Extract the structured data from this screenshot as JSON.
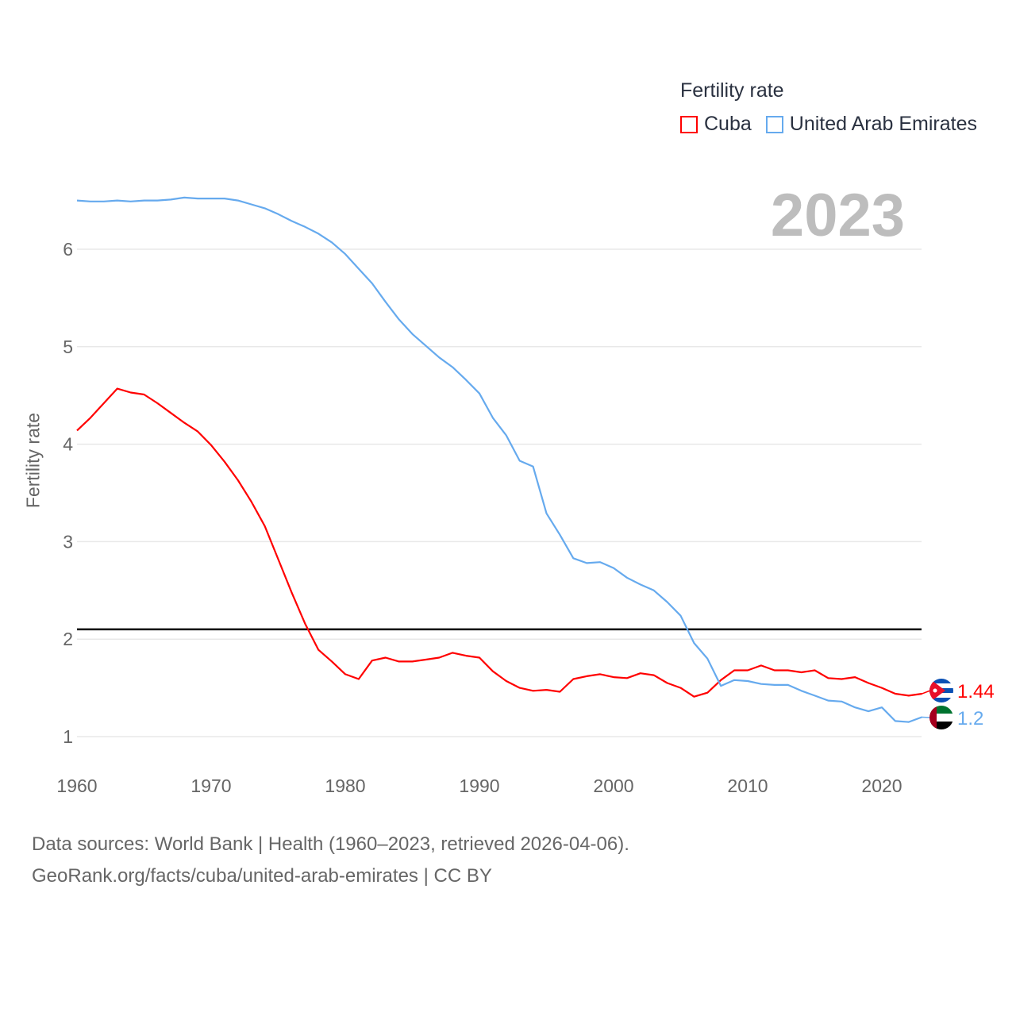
{
  "chart_data": {
    "type": "line",
    "title": "",
    "current_year": "2023",
    "xlabel": "",
    "ylabel": "Fertility rate",
    "xlim": [
      1960,
      2023
    ],
    "ylim": [
      0.8,
      6.6
    ],
    "xticks": [
      1960,
      1970,
      1980,
      1990,
      2000,
      2010,
      2020
    ],
    "yticks": [
      1,
      2,
      3,
      4,
      5,
      6
    ],
    "grid": true,
    "legend": {
      "title": "Fertility rate",
      "placement": "top-right"
    },
    "reference_line": {
      "y": 2.1,
      "color": "#000000"
    },
    "x": [
      1960,
      1961,
      1962,
      1963,
      1964,
      1965,
      1966,
      1967,
      1968,
      1969,
      1970,
      1971,
      1972,
      1973,
      1974,
      1975,
      1976,
      1977,
      1978,
      1979,
      1980,
      1981,
      1982,
      1983,
      1984,
      1985,
      1986,
      1987,
      1988,
      1989,
      1990,
      1991,
      1992,
      1993,
      1994,
      1995,
      1996,
      1997,
      1998,
      1999,
      2000,
      2001,
      2002,
      2003,
      2004,
      2005,
      2006,
      2007,
      2008,
      2009,
      2010,
      2011,
      2012,
      2013,
      2014,
      2015,
      2016,
      2017,
      2018,
      2019,
      2020,
      2021,
      2022,
      2023
    ],
    "series": [
      {
        "name": "Cuba",
        "color": "#ff0000",
        "end_label": "1.44",
        "values": [
          4.14,
          4.27,
          4.42,
          4.57,
          4.53,
          4.51,
          4.42,
          4.32,
          4.22,
          4.13,
          3.99,
          3.82,
          3.63,
          3.41,
          3.16,
          2.82,
          2.48,
          2.16,
          1.89,
          1.77,
          1.64,
          1.59,
          1.78,
          1.81,
          1.77,
          1.77,
          1.79,
          1.81,
          1.86,
          1.83,
          1.81,
          1.67,
          1.57,
          1.5,
          1.47,
          1.48,
          1.46,
          1.59,
          1.62,
          1.64,
          1.61,
          1.6,
          1.65,
          1.63,
          1.55,
          1.5,
          1.41,
          1.45,
          1.58,
          1.68,
          1.68,
          1.73,
          1.68,
          1.68,
          1.66,
          1.68,
          1.6,
          1.59,
          1.61,
          1.55,
          1.5,
          1.44,
          1.42,
          1.44
        ]
      },
      {
        "name": "United Arab Emirates",
        "color": "#66aaee",
        "end_label": "1.2",
        "values": [
          6.5,
          6.49,
          6.49,
          6.5,
          6.49,
          6.5,
          6.5,
          6.51,
          6.53,
          6.52,
          6.52,
          6.52,
          6.5,
          6.46,
          6.42,
          6.36,
          6.29,
          6.23,
          6.16,
          6.07,
          5.95,
          5.8,
          5.65,
          5.46,
          5.28,
          5.13,
          5.01,
          4.89,
          4.79,
          4.66,
          4.52,
          4.27,
          4.09,
          3.83,
          3.77,
          3.29,
          3.07,
          2.83,
          2.78,
          2.79,
          2.73,
          2.63,
          2.56,
          2.5,
          2.38,
          2.24,
          1.96,
          1.8,
          1.52,
          1.58,
          1.57,
          1.54,
          1.53,
          1.53,
          1.47,
          1.42,
          1.37,
          1.36,
          1.3,
          1.26,
          1.3,
          1.16,
          1.15,
          1.2
        ]
      }
    ]
  },
  "footer": {
    "line1": "Data sources: World Bank | Health (1960–2023, retrieved 2026-04-06).",
    "line2": "GeoRank.org/facts/cuba/united-arab-emirates | CC BY"
  }
}
